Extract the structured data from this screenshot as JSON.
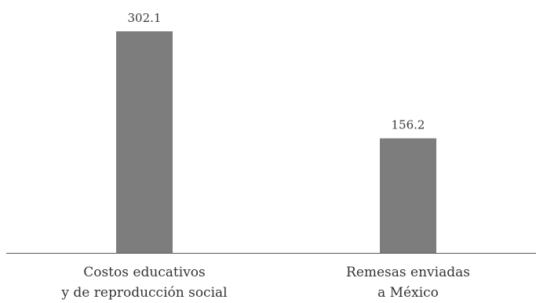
{
  "chart_data": {
    "type": "bar",
    "categories": [
      [
        "Costos educativos",
        "y de reproducción social"
      ],
      [
        "Remesas enviadas",
        "a México"
      ]
    ],
    "values": [
      302.1,
      156.2
    ],
    "value_labels": [
      "302.1",
      "156.2"
    ],
    "title": "",
    "xlabel": "",
    "ylabel": "",
    "ylim": [
      0,
      330
    ],
    "grid": false,
    "legend": "none",
    "colors": {
      "bar": "#7d7d7e",
      "axis": "#5a5a5a",
      "text": "#333333"
    }
  }
}
